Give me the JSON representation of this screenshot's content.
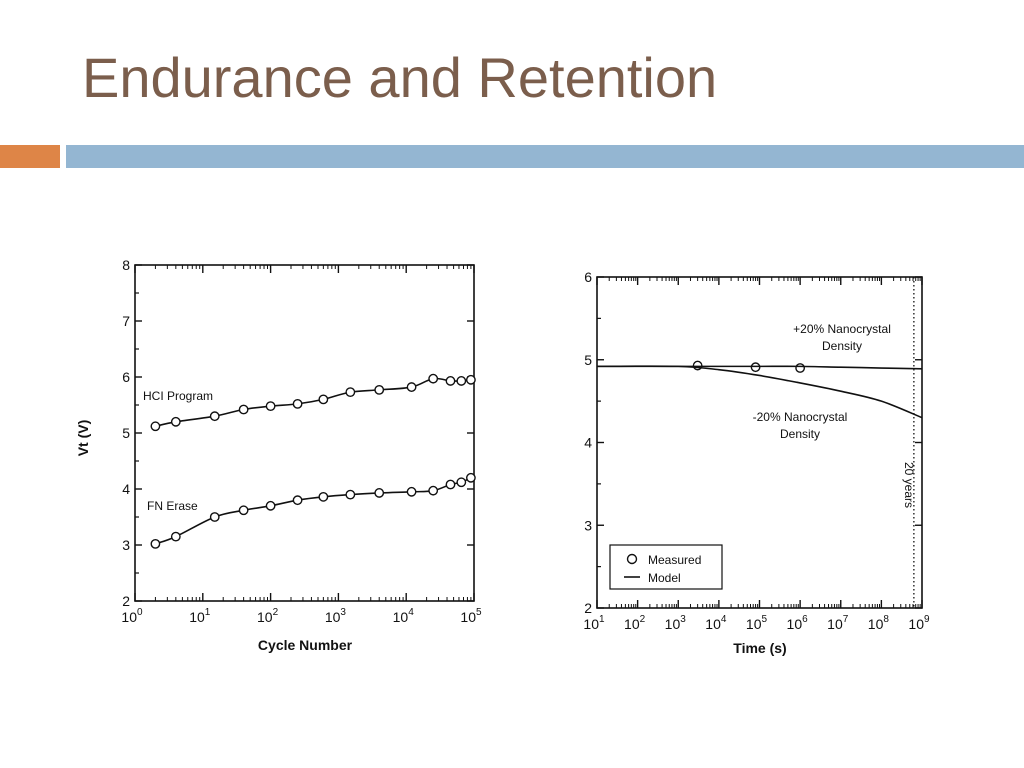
{
  "slide": {
    "title": "Endurance and Retention"
  },
  "colors": {
    "title": "#7b5e4c",
    "accent_orange": "#de8547",
    "accent_blue": "#94b6d2"
  },
  "chart_data": [
    {
      "type": "line",
      "xlabel": "Cycle Number",
      "ylabel": "Vt (V)",
      "x_scale": "log",
      "xlim": [
        1,
        100000
      ],
      "ylim": [
        2,
        8
      ],
      "x_ticks": [
        1,
        10,
        100,
        1000,
        10000,
        100000
      ],
      "y_ticks": [
        2,
        3,
        4,
        5,
        6,
        7,
        8
      ],
      "series": [
        {
          "name": "HCI Program",
          "x": [
            2,
            4,
            15,
            40,
            100,
            250,
            600,
            1500,
            4000,
            12000,
            25000,
            45000,
            65000,
            90000
          ],
          "y": [
            5.12,
            5.2,
            5.3,
            5.42,
            5.48,
            5.52,
            5.6,
            5.73,
            5.77,
            5.82,
            5.97,
            5.93,
            5.93,
            5.95
          ]
        },
        {
          "name": "FN Erase",
          "x": [
            2,
            4,
            15,
            40,
            100,
            250,
            600,
            1500,
            4000,
            12000,
            25000,
            45000,
            65000,
            90000
          ],
          "y": [
            3.02,
            3.15,
            3.5,
            3.62,
            3.7,
            3.8,
            3.86,
            3.9,
            3.93,
            3.95,
            3.97,
            4.08,
            4.12,
            4.2
          ]
        }
      ]
    },
    {
      "type": "line",
      "xlabel": "Time (s)",
      "x_scale": "log",
      "xlim": [
        10,
        1000000000
      ],
      "ylim": [
        2,
        6
      ],
      "x_ticks": [
        10,
        100,
        1000,
        10000,
        100000,
        1000000,
        10000000,
        100000000,
        1000000000
      ],
      "y_ticks": [
        2,
        3,
        4,
        5,
        6
      ],
      "annotations": [
        "+20% Nanocrystal",
        "Density",
        "-20% Nanocrystal",
        "Density",
        "20 years"
      ],
      "reference_line": {
        "x": 631000000,
        "label": "20 years",
        "style": "dotted"
      },
      "legend": {
        "position": "bottom-left",
        "entries": [
          "Measured",
          "Model"
        ]
      },
      "series": [
        {
          "name": "Measured",
          "x": [
            3000,
            80000,
            1000000
          ],
          "y": [
            4.93,
            4.91,
            4.9
          ]
        },
        {
          "name": "Model",
          "x": [
            10,
            1000,
            10000,
            100000,
            1000000,
            10000000,
            100000000,
            1000000000
          ],
          "y": [
            4.92,
            4.92,
            4.92,
            4.92,
            4.92,
            4.91,
            4.9,
            4.89
          ]
        },
        {
          "name": "Model",
          "x": [
            10,
            1000,
            10000,
            100000,
            1000000,
            10000000,
            100000000,
            1000000000
          ],
          "y": [
            4.92,
            4.92,
            4.88,
            4.81,
            4.72,
            4.62,
            4.5,
            4.3
          ]
        }
      ]
    }
  ]
}
